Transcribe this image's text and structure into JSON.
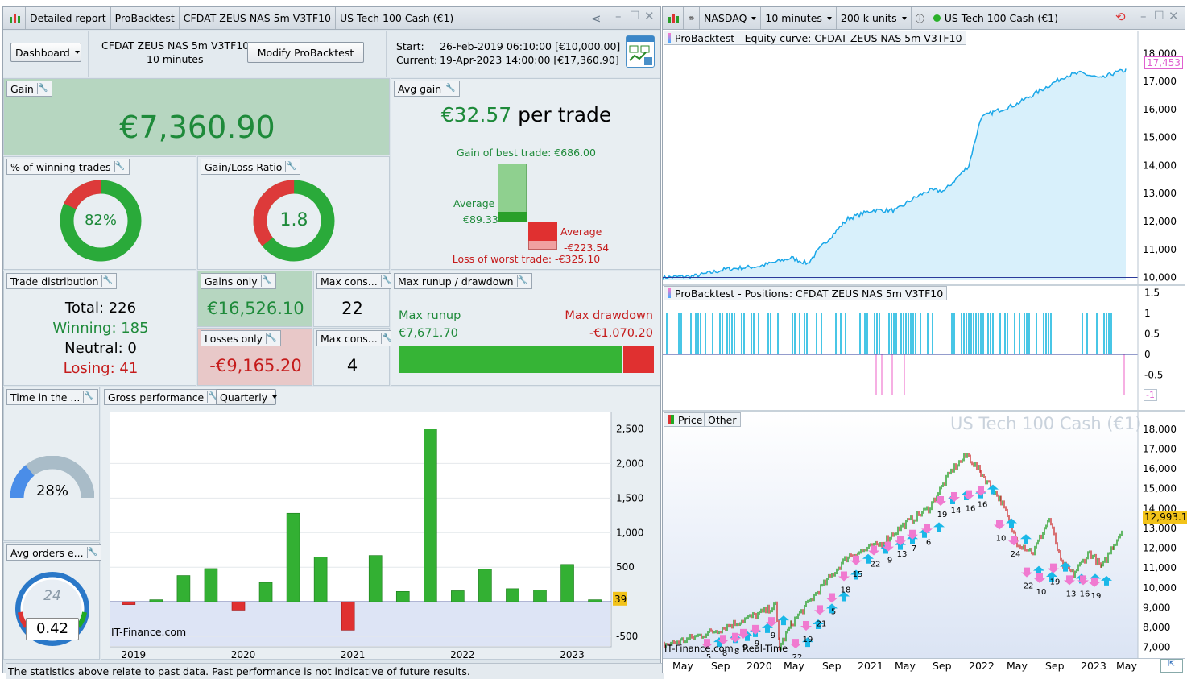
{
  "left_window": {
    "tabs": [
      "Detailed report",
      "ProBacktest",
      "CFDAT ZEUS NAS 5m V3TF10",
      "US Tech 100 Cash (€1)"
    ],
    "header": {
      "dashboard_label": "Dashboard",
      "strategy_name": "CFDAT ZEUS NAS 5m V3TF10",
      "timeframe": "10 minutes",
      "modify_button": "Modify ProBacktest",
      "start_label": "Start:",
      "start_value": "26-Feb-2019 06:10:00 [€10,000.00]",
      "current_label": "Current:",
      "current_value": "19-Apr-2023 14:00:00 [€17,360.90]"
    },
    "gain": {
      "title": "Gain",
      "value": "€7,360.90"
    },
    "avg_gain": {
      "title": "Avg gain",
      "value": "€32.57",
      "suffix": "per trade",
      "best_trade": "Gain of best trade: €686.00",
      "avg_win_label": "Average",
      "avg_win_value": "€89.33",
      "avg_loss_label": "Average",
      "avg_loss_value": "-€223.54",
      "worst_trade": "Loss of worst trade: -€325.10",
      "avg_win_fraction": 0.13,
      "avg_loss_fraction": 0.69
    },
    "winning_pct": {
      "title": "% of winning trades",
      "value": "82%",
      "fraction": 0.82
    },
    "gain_loss_ratio": {
      "title": "Gain/Loss Ratio",
      "value": "1.8",
      "fraction": 0.643
    },
    "trade_distribution": {
      "title": "Trade distribution",
      "total": "Total: 226",
      "winning": "Winning: 185",
      "neutral": "Neutral: 0",
      "losing": "Losing: 41"
    },
    "gains_only": {
      "title": "Gains only",
      "value": "€16,526.10"
    },
    "losses_only": {
      "title": "Losses only",
      "value": "-€9,165.20"
    },
    "max_cons_win": {
      "title": "Max cons...",
      "value": "22"
    },
    "max_cons_loss": {
      "title": "Max cons...",
      "value": "4"
    },
    "runup": {
      "title": "Max runup / drawdown",
      "runup_label": "Max runup",
      "runup_value": "€7,671.70",
      "drawdown_label": "Max drawdown",
      "drawdown_value": "-€1,070.20",
      "runup_fraction": 0.877
    },
    "time_in_market": {
      "title": "Time in the ...",
      "value": "28%",
      "fraction": 0.28
    },
    "avg_orders": {
      "title": "Avg orders e...",
      "value": "0.42",
      "dial": "24"
    },
    "gross_perf": {
      "title": "Gross performance",
      "period": "Quarterly",
      "watermark": "IT-Finance.com"
    },
    "footer": "The statistics above relate to past data. Past performance is not indicative of future results."
  },
  "right_window": {
    "tabs": [
      "NASDAQ",
      "10 minutes",
      "200 k units",
      "US Tech 100 Cash (€1)"
    ],
    "equity_title": "ProBacktest - Equity curve: CFDAT ZEUS NAS 5m V3TF10",
    "equity_last": "17,453",
    "equity_ticks": [
      "18,000",
      "17,000",
      "16,000",
      "15,000",
      "14,000",
      "13,000",
      "12,000",
      "11,000",
      "10,000"
    ],
    "positions_title": "ProBacktest - Positions: CFDAT ZEUS NAS 5m V3TF10",
    "positions_ticks": [
      "1.5",
      "1",
      "0.5",
      "0",
      "-0.5"
    ],
    "positions_last": "-1",
    "price_tabs": [
      "Price",
      "Other"
    ],
    "price_watermark": "US Tech 100 Cash (€1)",
    "price_last": "12,993.1",
    "price_ticks": [
      "18,000",
      "17,000",
      "16,000",
      "15,000",
      "14,000",
      "13,000",
      "12,000",
      "11,000",
      "10,000",
      "9,000",
      "8,000",
      "7,000"
    ],
    "price_footer": "IT-Finance.com - Real-Time",
    "x_labels": [
      "May",
      "Sep",
      "2020",
      "May",
      "Sep",
      "2021",
      "May",
      "Sep",
      "2022",
      "May",
      "Sep",
      "2023",
      "May"
    ],
    "trade_counts": [
      "5",
      "8",
      "8",
      "9",
      "9",
      "9",
      "22",
      "19",
      "21",
      "5",
      "18",
      "15",
      "22",
      "9",
      "13",
      "7",
      "6",
      "19",
      "14",
      "16",
      "16",
      "10",
      "24",
      "22",
      "10",
      "19",
      "13",
      "16",
      "19"
    ]
  },
  "chart_data": {
    "type": "bar",
    "title": "Gross performance",
    "x_labels": [
      "2019",
      "2020",
      "2021",
      "2022",
      "2023"
    ],
    "values": [
      -40,
      30,
      380,
      480,
      -120,
      280,
      1280,
      650,
      -410,
      670,
      150,
      2500,
      160,
      470,
      190,
      170,
      540,
      30
    ],
    "last_value_label": "39",
    "y_ticks": [
      "2,500",
      "2,000",
      "1,500",
      "1,000",
      "500",
      "-500"
    ],
    "ylim": [
      -650,
      2750
    ],
    "colors": {
      "positive": "#33b033",
      "negative": "#e03030"
    }
  }
}
